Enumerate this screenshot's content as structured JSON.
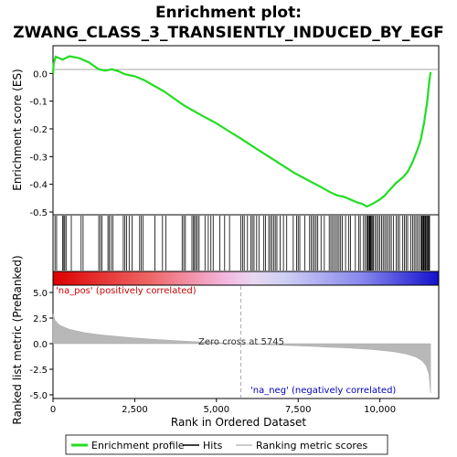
{
  "chart_data": {
    "type": "line",
    "title_line1": "Enrichment plot:",
    "title_line2": "ZWANG_CLASS_3_TRANSIENTLY_INDUCED_BY_EGF",
    "xlabel": "Rank in Ordered Dataset",
    "ylabel_top": "Enrichment score (ES)",
    "ylabel_bottom": "Ranked list metric (PreRanked)",
    "xlim": [
      0,
      11800
    ],
    "x_ticks": [
      0,
      2500,
      5000,
      7500,
      10000
    ],
    "x_tick_labels": [
      "0",
      "2,500",
      "5,000",
      "7,500",
      "10,000"
    ],
    "es_ylim": [
      -0.51,
      0.1
    ],
    "es_ticks": [
      0.0,
      -0.1,
      -0.2,
      -0.3,
      -0.4,
      -0.5
    ],
    "es_tick_labels": [
      "0.0",
      "-0.1",
      "-0.2",
      "-0.3",
      "-0.4",
      "-0.5"
    ],
    "metric_ylim": [
      -5,
      5
    ],
    "metric_ticks": [
      5.0,
      2.5,
      0.0,
      -2.5,
      -5.0
    ],
    "metric_tick_labels": [
      "5.0",
      "2.5",
      "0.0",
      "-2.5",
      "-5.0"
    ],
    "zero_cross_label": "Zero cross at 5745",
    "zero_cross": 5745,
    "pos_label": "'na_pos' (positively correlated)",
    "neg_label": "'na_neg' (negatively correlated)",
    "n_genes": 11550,
    "es_curve": [
      [
        0,
        0.0
      ],
      [
        20,
        0.035
      ],
      [
        80,
        0.06
      ],
      [
        300,
        0.05
      ],
      [
        500,
        0.062
      ],
      [
        800,
        0.055
      ],
      [
        1100,
        0.04
      ],
      [
        1400,
        0.015
      ],
      [
        1600,
        0.01
      ],
      [
        1800,
        0.015
      ],
      [
        2000,
        0.008
      ],
      [
        2200,
        -0.003
      ],
      [
        2500,
        -0.01
      ],
      [
        2800,
        -0.025
      ],
      [
        3100,
        -0.045
      ],
      [
        3400,
        -0.065
      ],
      [
        3700,
        -0.09
      ],
      [
        4000,
        -0.115
      ],
      [
        4300,
        -0.135
      ],
      [
        4600,
        -0.155
      ],
      [
        5000,
        -0.18
      ],
      [
        5400,
        -0.21
      ],
      [
        5745,
        -0.235
      ],
      [
        6200,
        -0.27
      ],
      [
        6600,
        -0.3
      ],
      [
        7000,
        -0.33
      ],
      [
        7400,
        -0.36
      ],
      [
        7800,
        -0.385
      ],
      [
        8200,
        -0.41
      ],
      [
        8500,
        -0.43
      ],
      [
        8700,
        -0.44
      ],
      [
        8900,
        -0.445
      ],
      [
        9100,
        -0.455
      ],
      [
        9300,
        -0.465
      ],
      [
        9450,
        -0.47
      ],
      [
        9600,
        -0.48
      ],
      [
        9700,
        -0.475
      ],
      [
        9850,
        -0.465
      ],
      [
        10000,
        -0.455
      ],
      [
        10150,
        -0.44
      ],
      [
        10300,
        -0.42
      ],
      [
        10500,
        -0.395
      ],
      [
        10700,
        -0.375
      ],
      [
        10850,
        -0.355
      ],
      [
        11000,
        -0.32
      ],
      [
        11150,
        -0.275
      ],
      [
        11250,
        -0.24
      ],
      [
        11350,
        -0.18
      ],
      [
        11450,
        -0.1
      ],
      [
        11500,
        -0.04
      ],
      [
        11550,
        0.005
      ]
    ],
    "metric_curve": [
      [
        0,
        2.9
      ],
      [
        60,
        2.3
      ],
      [
        200,
        1.8
      ],
      [
        500,
        1.4
      ],
      [
        1000,
        1.05
      ],
      [
        1500,
        0.85
      ],
      [
        2000,
        0.7
      ],
      [
        2500,
        0.55
      ],
      [
        3000,
        0.45
      ],
      [
        3500,
        0.35
      ],
      [
        4000,
        0.25
      ],
      [
        4500,
        0.17
      ],
      [
        5000,
        0.1
      ],
      [
        5400,
        0.05
      ],
      [
        5745,
        0.0
      ],
      [
        6200,
        -0.06
      ],
      [
        7000,
        -0.15
      ],
      [
        8000,
        -0.28
      ],
      [
        9000,
        -0.42
      ],
      [
        9800,
        -0.58
      ],
      [
        10400,
        -0.78
      ],
      [
        10800,
        -1.0
      ],
      [
        11100,
        -1.3
      ],
      [
        11300,
        -1.7
      ],
      [
        11420,
        -2.2
      ],
      [
        11500,
        -3.0
      ],
      [
        11550,
        -4.8
      ]
    ],
    "hits": [
      60,
      110,
      290,
      330,
      360,
      400,
      560,
      860,
      920,
      1400,
      1450,
      1500,
      1680,
      1720,
      1780,
      1830,
      2150,
      2200,
      2250,
      2330,
      2420,
      2650,
      2700,
      2750,
      3120,
      3350,
      3450,
      3950,
      4000,
      4050,
      4250,
      4300,
      4330,
      4380,
      4420,
      4470,
      4650,
      4750,
      4830,
      4900,
      5100,
      5250,
      5400,
      5750,
      5800,
      5850,
      5950,
      6050,
      6100,
      6150,
      6230,
      6300,
      6450,
      6500,
      6600,
      6650,
      6700,
      6750,
      6800,
      6850,
      6950,
      7050,
      7150,
      7350,
      7450,
      7500,
      7550,
      7700,
      7850,
      7900,
      7950,
      8000,
      8050,
      8100,
      8200,
      8300,
      8450,
      8500,
      8550,
      8600,
      8650,
      8700,
      8750,
      8800,
      8850,
      8950,
      9050,
      9100,
      9250,
      9350,
      9400,
      9500,
      9550,
      9600,
      9620,
      9650,
      9680,
      9700,
      9720,
      9750,
      9780,
      9800,
      9850,
      9900,
      9950,
      10000,
      10050,
      10100,
      10150,
      10200,
      10250,
      10300,
      10350,
      10420,
      10500,
      10550,
      10600,
      10700,
      10750,
      10800,
      10850,
      10950,
      11000,
      11050,
      11100,
      11150,
      11200,
      11250,
      11280,
      11300,
      11330,
      11350,
      11380,
      11400,
      11430,
      11450,
      11480,
      11500,
      11520
    ],
    "legend": {
      "placement": "bottom",
      "items": [
        {
          "label": "Enrichment profile",
          "color": "#22dd22"
        },
        {
          "label": "Hits",
          "color": "#000000"
        },
        {
          "label": "Ranking metric scores",
          "color": "#bbbbbb"
        }
      ]
    },
    "colors": {
      "es_line": "#22dd22",
      "metric_fill": "#b8b8b8",
      "pos_text": "#cc0000",
      "neg_text": "#0000bb",
      "zero_line": "#aaaaaa"
    }
  }
}
